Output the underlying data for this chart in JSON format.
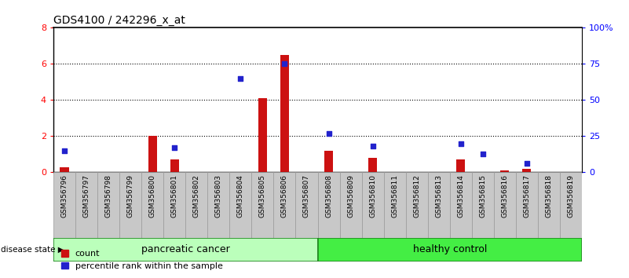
{
  "title": "GDS4100 / 242296_x_at",
  "samples": [
    "GSM356796",
    "GSM356797",
    "GSM356798",
    "GSM356799",
    "GSM356800",
    "GSM356801",
    "GSM356802",
    "GSM356803",
    "GSM356804",
    "GSM356805",
    "GSM356806",
    "GSM356807",
    "GSM356808",
    "GSM356809",
    "GSM356810",
    "GSM356811",
    "GSM356812",
    "GSM356813",
    "GSM356814",
    "GSM356815",
    "GSM356816",
    "GSM356817",
    "GSM356818",
    "GSM356819"
  ],
  "counts": [
    0.3,
    0,
    0,
    0,
    2.0,
    0.7,
    0,
    0,
    0,
    4.1,
    6.5,
    0,
    1.2,
    0,
    0.8,
    0,
    0,
    0,
    0.7,
    0,
    0.1,
    0.2,
    0,
    0
  ],
  "percentiles": [
    15,
    0,
    0,
    0,
    0,
    17,
    0,
    0,
    65,
    0,
    75,
    0,
    27,
    0,
    18,
    0,
    0,
    0,
    20,
    13,
    0,
    6,
    0,
    0
  ],
  "group1_label": "pancreatic cancer",
  "group2_label": "healthy control",
  "group1_count": 12,
  "ylim_left": [
    0,
    8
  ],
  "ylim_right": [
    0,
    100
  ],
  "yticks_left": [
    0,
    2,
    4,
    6,
    8
  ],
  "yticks_right": [
    0,
    25,
    50,
    75,
    100
  ],
  "ytick_right_labels": [
    "0",
    "25",
    "50",
    "75",
    "100%"
  ],
  "bar_color": "#cc1111",
  "dot_color": "#2222cc",
  "group1_facecolor": "#bbffbb",
  "group2_facecolor": "#44ee44",
  "group_edgecolor": "#228822",
  "xtick_bg_color": "#c8c8c8",
  "legend_count_color": "#cc1111",
  "legend_pct_color": "#2222cc"
}
